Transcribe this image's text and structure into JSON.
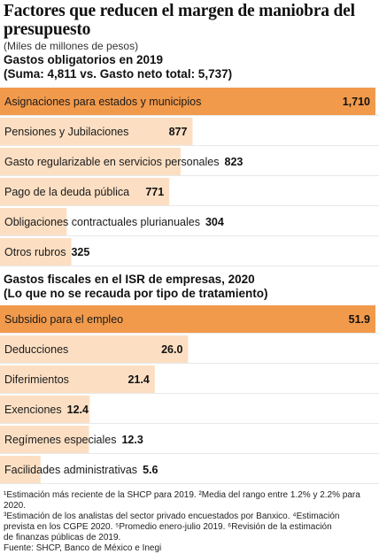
{
  "title": "Factores que reducen el margen de maniobra del presupuesto",
  "subtitle": "(Miles de millones de pesos)",
  "section1": {
    "title_line1": "Gastos obligatorios en 2019",
    "title_line2": "(Suma: 4,811 vs. Gasto neto total: 5,737)"
  },
  "section2": {
    "title_line1": "Gastos fiscales en el ISR de empresas, 2020",
    "title_line2": "(Lo que no se recauda por tipo de tratamiento)"
  },
  "colors": {
    "bar_dark": "#f29a4b",
    "bar_light": "#fcdfc3",
    "separator": "#e8e8e8"
  },
  "chart_data": [
    {
      "type": "bar",
      "orientation": "horizontal",
      "title": "Gastos obligatorios en 2019",
      "categories": [
        "Asignaciones para estados y municipios",
        "Pensiones y Jubilaciones",
        "Gasto regularizable en servicios personales",
        "Pago de la deuda pública",
        "Obligaciones contractuales plurianuales",
        "Otros rubros"
      ],
      "values": [
        1710,
        877,
        823,
        771,
        304,
        325
      ],
      "value_labels": [
        "1,710",
        "877",
        "823",
        "771",
        "304",
        "325"
      ],
      "xlim": [
        0,
        1710
      ]
    },
    {
      "type": "bar",
      "orientation": "horizontal",
      "title": "Gastos fiscales en el ISR de empresas, 2020",
      "categories": [
        "Subsidio para el empleo",
        "Deducciones",
        "Diferimientos",
        "Exenciones",
        "Regímenes especiales",
        "Facilidades administrativas"
      ],
      "values": [
        51.9,
        26.0,
        21.4,
        12.4,
        12.3,
        5.6
      ],
      "value_labels": [
        "51.9",
        "26.0",
        "21.4",
        "12.4",
        "12.3",
        "5.6"
      ],
      "xlim": [
        0,
        51.9
      ]
    }
  ],
  "footnotes": [
    "¹Estimación más reciente de la SHCP para 2019. ²Media del rango entre 1.2% y 2.2% para 2020.",
    "³Estimación de los analistas del sector privado encuestados por Banxico. ⁴Estimación",
    "prevista en los CGPE 2020. ⁵Promedio enero-julio 2019. ⁶Revisión de la estimación",
    "de finanzas públicas de 2019.",
    "Fuente: SHCP, Banco de México e Inegi"
  ]
}
